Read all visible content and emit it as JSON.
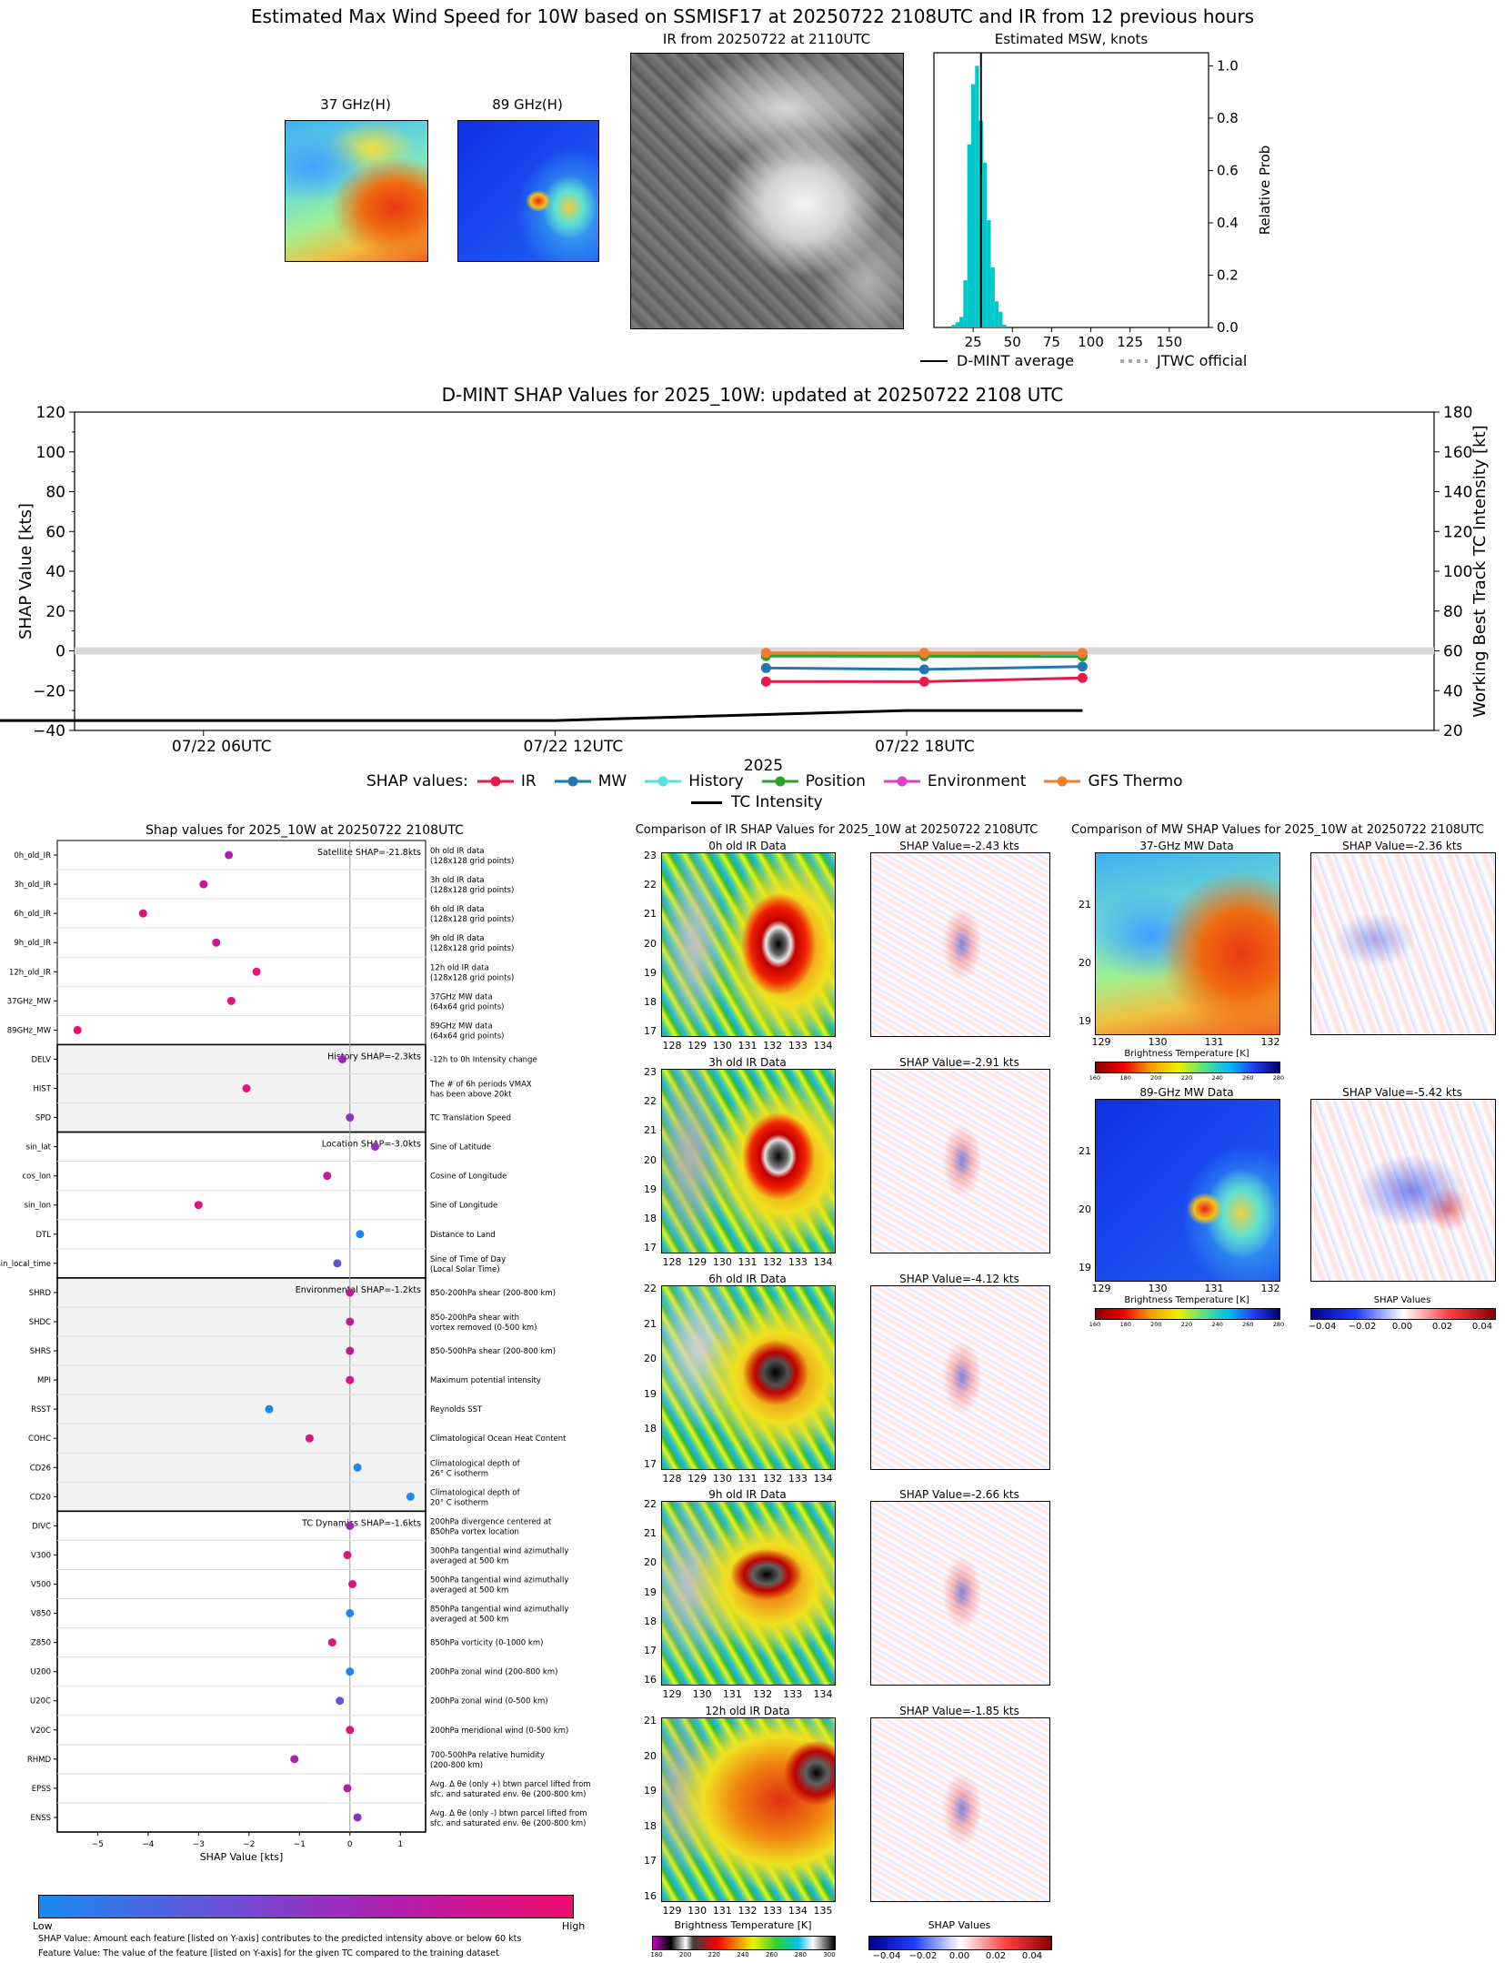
{
  "top": {
    "main_title": "Estimated Max Wind Speed for 10W based on SSMISF17 at 20250722 2108UTC and IR from 12 previous hours",
    "panel_37_title": "37 GHz(H)",
    "panel_89_title": "89 GHz(H)",
    "ir_title": "IR from 20250722 at 2110UTC",
    "hist_title": "Estimated MSW, knots",
    "hist_ylabel": "Relative Prob",
    "hist_legend": {
      "dmint": "D-MINT average",
      "jtwc": "JTWC official"
    }
  },
  "timeseries": {
    "title": "D-MINT SHAP Values for 2025_10W: updated at 20250722 2108 UTC",
    "ylabel_left": "SHAP Value [kts]",
    "ylabel_right": "Working Best Track TC Intensity [kt]",
    "xlabel": "2025",
    "xticks": [
      "07/22 06UTC",
      "07/22 12UTC",
      "07/22 18UTC"
    ],
    "legend_prefix": "SHAP values:",
    "legend": [
      "IR",
      "MW",
      "History",
      "Position",
      "Environment",
      "GFS Thermo",
      "TC Intensity"
    ]
  },
  "shap_panel": {
    "title": "Shap values for 2025_10W at 20250722 2108UTC",
    "xlabel": "SHAP Value [kts]",
    "group_labels": [
      "Satellite SHAP=-21.8kts",
      "History SHAP=-2.3kts",
      "Location SHAP=-3.0kts",
      "Environmental SHAP=-1.2kts",
      "TC Dynamics SHAP=-1.6kts"
    ],
    "cbar_low": "Low",
    "cbar_high": "High",
    "note1": "SHAP Value: Amount each feature [listed on Y-axis] contributes to the predicted intensity above or below 60 kts",
    "note2": "Feature Value: The value of the feature [listed on Y-axis] for the given TC compared to the training dataset"
  },
  "ir_compare": {
    "title": "Comparison of IR SHAP Values for 2025_10W at 20250722 2108UTC",
    "rows": [
      {
        "data_title": "0h old IR Data",
        "shap_title": "SHAP Value=-2.43 kts"
      },
      {
        "data_title": "3h old IR Data",
        "shap_title": "SHAP Value=-2.91 kts"
      },
      {
        "data_title": "6h old IR Data",
        "shap_title": "SHAP Value=-4.12 kts"
      },
      {
        "data_title": "9h old IR Data",
        "shap_title": "SHAP Value=-2.66 kts"
      },
      {
        "data_title": "12h old IR Data",
        "shap_title": "SHAP Value=-1.85 kts"
      }
    ],
    "cbar_title": "Brightness Temperature [K]",
    "cbar_ticks": [
      "180",
      "200",
      "220",
      "240",
      "260",
      "280",
      "300"
    ],
    "shap_cbar_title": "SHAP Values",
    "shap_cbar_ticks": [
      "−0.04",
      "−0.02",
      "0.00",
      "0.02",
      "0.04"
    ]
  },
  "mw_compare": {
    "title": "Comparison of MW SHAP Values for 2025_10W at 20250722 2108UTC",
    "rows": [
      {
        "data_title": "37-GHz MW Data",
        "shap_title": "SHAP Value=-2.36 kts"
      },
      {
        "data_title": "89-GHz MW Data",
        "shap_title": "SHAP Value=-5.42 kts"
      }
    ],
    "cbar_title": "Brightness Temperature [K]",
    "cbar_ticks": [
      "160",
      "180",
      "200",
      "220",
      "240",
      "260",
      "280"
    ],
    "shap_cbar_title": "SHAP Values",
    "shap_cbar_ticks": [
      "−0.04",
      "−0.02",
      "0.00",
      "0.02",
      "0.04"
    ]
  },
  "chart_data": [
    {
      "type": "bar",
      "title": "Estimated MSW, knots",
      "xlabel": "",
      "ylabel": "Relative Prob",
      "xlim": [
        0,
        175
      ],
      "ylim": [
        0,
        1.05
      ],
      "xticks": [
        25,
        50,
        75,
        100,
        125,
        150
      ],
      "yticks": [
        0.0,
        0.2,
        0.4,
        0.6,
        0.8,
        1.0
      ],
      "bin_width": 2.5,
      "x": [
        12.5,
        15,
        17.5,
        20,
        22.5,
        25,
        27.5,
        30,
        32.5,
        35,
        37.5,
        40,
        42.5,
        45
      ],
      "values": [
        0.01,
        0.02,
        0.04,
        0.18,
        0.7,
        0.93,
        1.0,
        0.79,
        0.63,
        0.41,
        0.23,
        0.1,
        0.06,
        0.01
      ],
      "dmint_average": 30
    },
    {
      "type": "line",
      "title": "D-MINT SHAP Values for 2025_10W: updated at 20250722 2108 UTC",
      "xlabel": "2025",
      "ylabel": "SHAP Value [kts]",
      "ylabel_right": "Working Best Track TC Intensity [kt]",
      "ylim": [
        -40,
        120
      ],
      "ylim_right": [
        20,
        180
      ],
      "x_hours": [
        0,
        6,
        12,
        18,
        21
      ],
      "colors": {
        "IR": "#e8194a",
        "MW": "#1f77b4",
        "History": "#55e0e0",
        "Position": "#2ca02c",
        "Environment": "#e040c8",
        "GFS Thermo": "#f08030",
        "TC Intensity": "#000000"
      },
      "series": [
        {
          "name": "IR",
          "x": [
            15.6,
            18.3,
            21.0
          ],
          "values": [
            -15.4,
            -15.5,
            -13.6
          ]
        },
        {
          "name": "MW",
          "x": [
            15.6,
            18.3,
            21.0
          ],
          "values": [
            -8.6,
            -9.3,
            -7.9
          ]
        },
        {
          "name": "History",
          "x": [
            15.6,
            18.3,
            21.0
          ],
          "values": [
            -2.0,
            -2.1,
            -2.1
          ]
        },
        {
          "name": "Position",
          "x": [
            15.6,
            18.3,
            21.0
          ],
          "values": [
            -2.6,
            -2.7,
            -2.8
          ]
        },
        {
          "name": "Environment",
          "x": [
            15.6,
            18.3,
            21.0
          ],
          "values": [
            -1.1,
            -1.2,
            -1.2
          ]
        },
        {
          "name": "GFS Thermo",
          "x": [
            15.6,
            18.3,
            21.0
          ],
          "values": [
            -1.0,
            -1.0,
            -1.0
          ]
        },
        {
          "name": "TC Intensity",
          "axis": "right",
          "x": [
            1.2,
            12,
            18,
            21
          ],
          "values": [
            25,
            25,
            30,
            30
          ]
        }
      ]
    },
    {
      "type": "scatter",
      "title": "Shap values for 2025_10W at 20250722 2108UTC",
      "xlabel": "SHAP Value [kts]",
      "xlim": [
        -5.8,
        1.5
      ],
      "xticks": [
        -5,
        -4,
        -3,
        -2,
        -1,
        0,
        1
      ],
      "features": [
        {
          "name": "0h_old_IR",
          "desc": [
            "0h old IR data",
            "(128x128 grid points)"
          ],
          "shap": -2.4,
          "color": "#b01fb0"
        },
        {
          "name": "3h_old_IR",
          "desc": [
            "3h old IR data",
            "(128x128 grid points)"
          ],
          "shap": -2.9,
          "color": "#d0158c"
        },
        {
          "name": "6h_old_IR",
          "desc": [
            "6h old IR data",
            "(128x128 grid points)"
          ],
          "shap": -4.1,
          "color": "#e0127c"
        },
        {
          "name": "9h_old_IR",
          "desc": [
            "9h old IR data",
            "(128x128 grid points)"
          ],
          "shap": -2.65,
          "color": "#d0158c"
        },
        {
          "name": "12h_old_IR",
          "desc": [
            "12h old IR data",
            "(128x128 grid points)"
          ],
          "shap": -1.85,
          "color": "#e8107a"
        },
        {
          "name": "37GHz_MW",
          "desc": [
            "37GHz MW data",
            "(64x64 grid points)"
          ],
          "shap": -2.35,
          "color": "#e0127c"
        },
        {
          "name": "89GHz_MW",
          "desc": [
            "89GHz MW data",
            "(64x64 grid points)"
          ],
          "shap": -5.4,
          "color": "#f00c6c"
        },
        {
          "name": "DELV",
          "desc": [
            "-12h to 0h Intensity change"
          ],
          "shap": -0.15,
          "color": "#a020b8"
        },
        {
          "name": "HIST",
          "desc": [
            "The # of 6h periods VMAX",
            "has been above 20kt"
          ],
          "shap": -2.05,
          "color": "#e8107a"
        },
        {
          "name": "SPD",
          "desc": [
            "TC Translation Speed"
          ],
          "shap": 0.0,
          "color": "#9030c0"
        },
        {
          "name": "sin_lat",
          "desc": [
            "Sine of Latitude"
          ],
          "shap": 0.5,
          "color": "#9030c0"
        },
        {
          "name": "cos_lon",
          "desc": [
            "Cosine of Longitude"
          ],
          "shap": -0.45,
          "color": "#c01a9c"
        },
        {
          "name": "sin_lon",
          "desc": [
            "Sine of Longitude"
          ],
          "shap": -3.0,
          "color": "#d81484"
        },
        {
          "name": "DTL",
          "desc": [
            "Distance to Land"
          ],
          "shap": 0.2,
          "color": "#1a8af0"
        },
        {
          "name": "sin_local_time",
          "desc": [
            "Sine of Time of Day",
            "(Local Solar Time)"
          ],
          "shap": -0.25,
          "color": "#5a58d8"
        },
        {
          "name": "SHRD",
          "desc": [
            "850-200hPa shear (200-800 km)"
          ],
          "shap": 0.0,
          "color": "#c01a9c"
        },
        {
          "name": "SHDC",
          "desc": [
            "850-200hPa shear with",
            "vortex removed (0-500 km)"
          ],
          "shap": 0.0,
          "color": "#c01a9c"
        },
        {
          "name": "SHRS",
          "desc": [
            "850-500hPa shear (200-800 km)"
          ],
          "shap": 0.0,
          "color": "#c01a9c"
        },
        {
          "name": "MPI",
          "desc": [
            "Maximum potential intensity"
          ],
          "shap": 0.0,
          "color": "#d81484"
        },
        {
          "name": "RSST",
          "desc": [
            "Reynolds SST"
          ],
          "shap": -1.6,
          "color": "#1a8af0"
        },
        {
          "name": "COHC",
          "desc": [
            "Climatological Ocean Heat Content"
          ],
          "shap": -0.8,
          "color": "#d81484"
        },
        {
          "name": "CD26",
          "desc": [
            "Climatological depth of",
            "26° C isotherm"
          ],
          "shap": 0.15,
          "color": "#1a8af0"
        },
        {
          "name": "CD20",
          "desc": [
            "Climatological depth of",
            "20° C isotherm"
          ],
          "shap": 1.2,
          "color": "#1a8af0"
        },
        {
          "name": "DIVC",
          "desc": [
            "200hPa divergence centered at",
            "850hPa vortex location"
          ],
          "shap": 0.0,
          "color": "#a020b8"
        },
        {
          "name": "V300",
          "desc": [
            "300hPa tangential wind azimuthally",
            "averaged at 500 km"
          ],
          "shap": -0.05,
          "color": "#e0127c"
        },
        {
          "name": "V500",
          "desc": [
            "500hPa tangential wind azimuthally",
            "averaged at 500 km"
          ],
          "shap": 0.05,
          "color": "#e0127c"
        },
        {
          "name": "V850",
          "desc": [
            "850hPa tangential wind azimuthally",
            "averaged at 500 km"
          ],
          "shap": 0.0,
          "color": "#1a8af0"
        },
        {
          "name": "Z850",
          "desc": [
            "850hPa vorticity (0-1000 km)"
          ],
          "shap": -0.35,
          "color": "#e0127c"
        },
        {
          "name": "U200",
          "desc": [
            "200hPa zonal wind (200-800 km)"
          ],
          "shap": 0.0,
          "color": "#1a8af0"
        },
        {
          "name": "U20C",
          "desc": [
            "200hPa zonal wind (0-500 km)"
          ],
          "shap": -0.2,
          "color": "#5a58d8"
        },
        {
          "name": "V20C",
          "desc": [
            "200hPa meridional wind (0-500 km)"
          ],
          "shap": 0.0,
          "color": "#e0127c"
        },
        {
          "name": "RHMD",
          "desc": [
            "700-500hPa relative humidity",
            "(200-800 km)"
          ],
          "shap": -1.1,
          "color": "#b01fb0"
        },
        {
          "name": "EPSS",
          "desc": [
            "Avg. Δ θe (only +) btwn parcel lifted from",
            "sfc. and saturated env. θe (200-800 km)"
          ],
          "shap": -0.05,
          "color": "#b01fb0"
        },
        {
          "name": "ENSS",
          "desc": [
            "Avg. Δ θe (only -) btwn parcel lifted from",
            "sfc. and saturated env. θe (200-800 km)"
          ],
          "shap": 0.15,
          "color": "#9030c0"
        }
      ]
    }
  ],
  "axes": {
    "hist_xticks": [
      "25",
      "50",
      "75",
      "100",
      "125",
      "150"
    ],
    "hist_yticks": [
      "0.0",
      "0.2",
      "0.4",
      "0.6",
      "0.8",
      "1.0"
    ],
    "ts_left_ticks": [
      "120",
      "100",
      "80",
      "60",
      "40",
      "20",
      "0",
      "−20",
      "−40"
    ],
    "ts_right_ticks": [
      "180",
      "160",
      "140",
      "120",
      "100",
      "80",
      "60",
      "40",
      "20"
    ],
    "shap_xticks": [
      "−5",
      "−4",
      "−3",
      "−2",
      "−1",
      "0",
      "1"
    ],
    "ir_rows_yticks": [
      [
        "23",
        "22",
        "21",
        "20",
        "19",
        "18",
        "17"
      ],
      [
        "23",
        "22",
        "21",
        "20",
        "19",
        "18",
        "17"
      ],
      [
        "22",
        "21",
        "20",
        "19",
        "18",
        "17"
      ],
      [
        "22",
        "21",
        "20",
        "19",
        "18",
        "17",
        "16"
      ],
      [
        "21",
        "20",
        "19",
        "18",
        "17",
        "16"
      ]
    ],
    "ir_rows_xticks": [
      [
        "128",
        "129",
        "130",
        "131",
        "132",
        "133",
        "134"
      ],
      [
        "128",
        "129",
        "130",
        "131",
        "132",
        "133",
        "134"
      ],
      [
        "128",
        "129",
        "130",
        "131",
        "132",
        "133",
        "134"
      ],
      [
        "129",
        "130",
        "131",
        "132",
        "133",
        "134"
      ],
      [
        "129",
        "130",
        "131",
        "132",
        "133",
        "134",
        "135"
      ]
    ],
    "mw_yticks": [
      "21",
      "20",
      "19"
    ],
    "mw_xticks": [
      "129",
      "130",
      "131",
      "132"
    ]
  }
}
